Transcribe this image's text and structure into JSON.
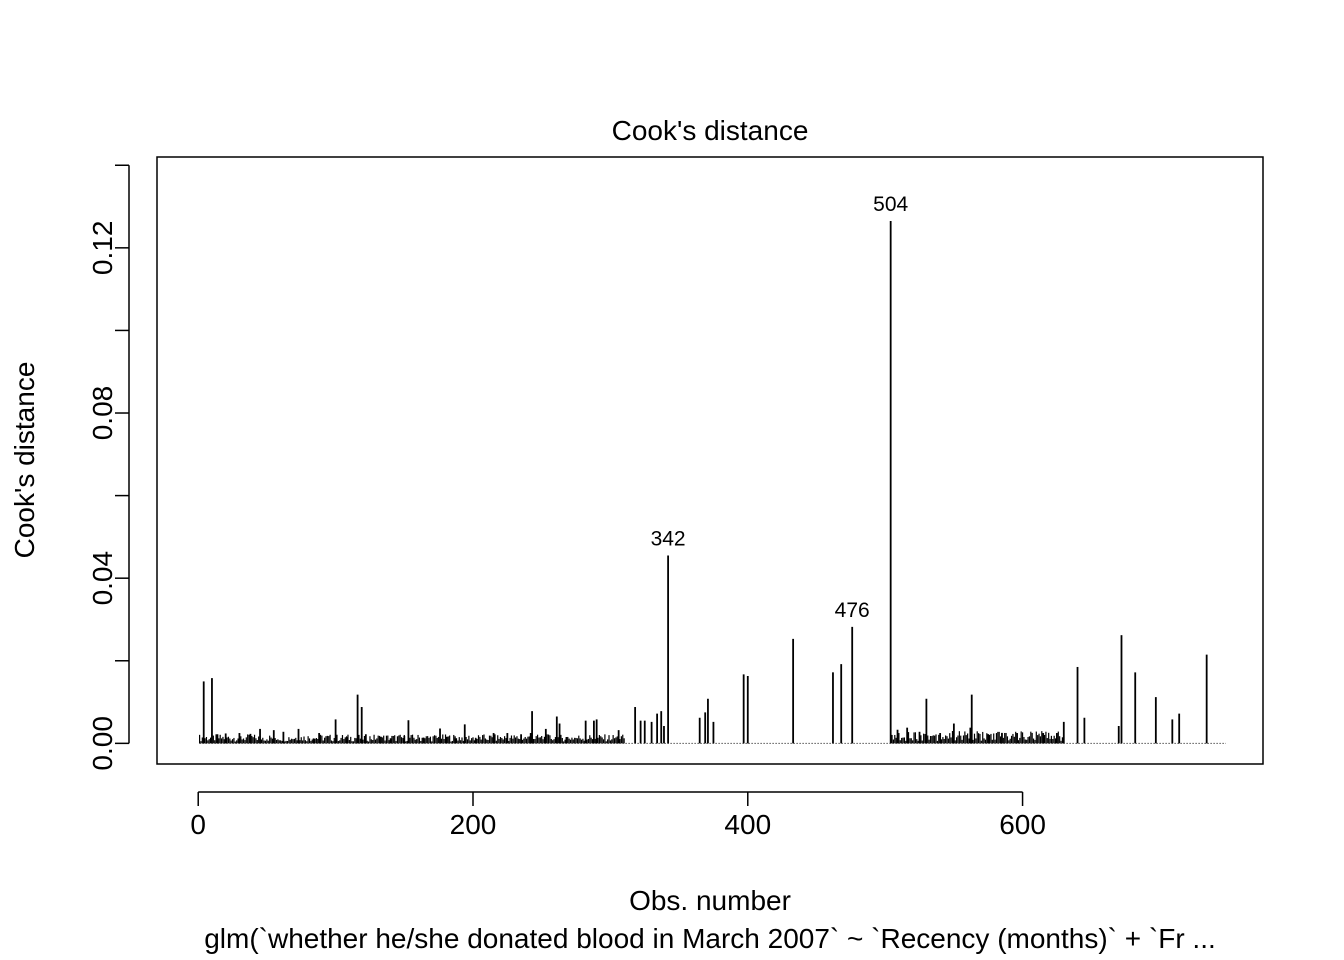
{
  "chart_data": {
    "type": "bar",
    "title": "Cook's distance",
    "xlabel": "Obs. number",
    "ylabel": "Cook's distance",
    "subtitle": "glm(`whether he/she donated blood in March 2007` ~ `Recency (months)` + `Fr ...",
    "xlim": [
      -30,
      775
    ],
    "ylim": [
      -0.005,
      0.142
    ],
    "xticks": [
      0,
      200,
      400,
      600
    ],
    "xtick_labels": [
      "0",
      "200",
      "400",
      "600"
    ],
    "yticks": [
      0.0,
      0.02,
      0.04,
      0.06,
      0.08,
      0.1,
      0.12,
      0.14
    ],
    "ytick_labels": [
      "0.00",
      "0.04",
      "0.08",
      "0.12"
    ],
    "ytick_labeled_values": [
      0.0,
      0.04,
      0.08,
      0.12
    ],
    "grid": false,
    "n_obs": 748,
    "series": [
      {
        "points": [
          [
            4,
            0.015
          ],
          [
            10,
            0.0158
          ],
          [
            14,
            0.0022
          ],
          [
            20,
            0.0024
          ],
          [
            30,
            0.0025
          ],
          [
            38,
            0.0023
          ],
          [
            45,
            0.0035
          ],
          [
            55,
            0.0032
          ],
          [
            62,
            0.0028
          ],
          [
            73,
            0.0035
          ],
          [
            84,
            0.0012
          ],
          [
            88,
            0.0025
          ],
          [
            100,
            0.0058
          ],
          [
            108,
            0.0015
          ],
          [
            116,
            0.0118
          ],
          [
            119,
            0.0088
          ],
          [
            122,
            0.0022
          ],
          [
            133,
            0.0016
          ],
          [
            140,
            0.0012
          ],
          [
            150,
            0.0018
          ],
          [
            153,
            0.0056
          ],
          [
            164,
            0.0014
          ],
          [
            176,
            0.0036
          ],
          [
            181,
            0.0016
          ],
          [
            187,
            0.0012
          ],
          [
            194,
            0.0046
          ],
          [
            202,
            0.0012
          ],
          [
            215,
            0.0025
          ],
          [
            225,
            0.0025
          ],
          [
            235,
            0.0022
          ],
          [
            242,
            0.0025
          ],
          [
            243,
            0.0078
          ],
          [
            253,
            0.0035
          ],
          [
            261,
            0.0065
          ],
          [
            263,
            0.0048
          ],
          [
            268,
            0.0015
          ],
          [
            282,
            0.0055
          ],
          [
            288,
            0.0055
          ],
          [
            290,
            0.0058
          ],
          [
            306,
            0.0032
          ],
          [
            318,
            0.0088
          ],
          [
            322,
            0.0055
          ],
          [
            325,
            0.0055
          ],
          [
            330,
            0.0052
          ],
          [
            334,
            0.0072
          ],
          [
            337,
            0.0078
          ],
          [
            339,
            0.0042
          ],
          [
            342,
            0.0455
          ],
          [
            365,
            0.0062
          ],
          [
            369,
            0.0075
          ],
          [
            371,
            0.0108
          ],
          [
            375,
            0.0052
          ],
          [
            397,
            0.0167
          ],
          [
            400,
            0.0163
          ],
          [
            433,
            0.0253
          ],
          [
            462,
            0.0172
          ],
          [
            468,
            0.0192
          ],
          [
            476,
            0.0282
          ],
          [
            504,
            0.1265
          ],
          [
            509,
            0.0033
          ],
          [
            516,
            0.0038
          ],
          [
            525,
            0.0028
          ],
          [
            530,
            0.0108
          ],
          [
            540,
            0.0025
          ],
          [
            550,
            0.0048
          ],
          [
            562,
            0.0038
          ],
          [
            563,
            0.0118
          ],
          [
            575,
            0.0022
          ],
          [
            585,
            0.0025
          ],
          [
            596,
            0.0025
          ],
          [
            615,
            0.0025
          ],
          [
            625,
            0.0025
          ],
          [
            630,
            0.0052
          ],
          [
            640,
            0.0185
          ],
          [
            645,
            0.0062
          ],
          [
            670,
            0.0042
          ],
          [
            672,
            0.0262
          ],
          [
            682,
            0.0172
          ],
          [
            697,
            0.0112
          ],
          [
            709,
            0.0058
          ],
          [
            714,
            0.0072
          ],
          [
            734,
            0.0215
          ]
        ]
      }
    ],
    "annotations": [
      {
        "x": 342,
        "y": 0.0455,
        "text": "342"
      },
      {
        "x": 476,
        "y": 0.0282,
        "text": "476"
      },
      {
        "x": 504,
        "y": 0.1265,
        "text": "504"
      }
    ]
  }
}
